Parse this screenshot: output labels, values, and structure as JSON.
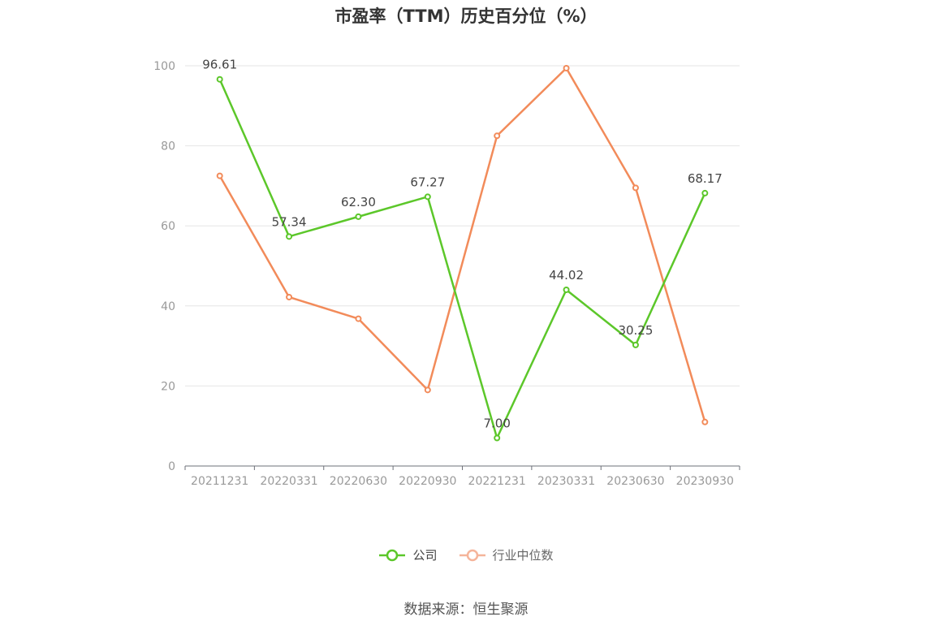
{
  "chart_data": {
    "type": "line",
    "title": "市盈率（TTM）历史百分位（%）",
    "categories": [
      "20211231",
      "20220331",
      "20220630",
      "20220930",
      "20221231",
      "20230331",
      "20230630",
      "20230930"
    ],
    "series": [
      {
        "name": "公司",
        "values": [
          96.61,
          57.34,
          62.3,
          67.27,
          7.0,
          44.02,
          30.25,
          68.17
        ],
        "color": "#5cc72a",
        "show_labels": true
      },
      {
        "name": "行业中位数",
        "values": [
          72.5,
          42.2,
          36.8,
          19.0,
          82.5,
          99.4,
          69.5,
          11.0
        ],
        "color": "#f28b5a",
        "show_labels": false
      }
    ],
    "ylim": [
      0,
      100
    ],
    "yticks": [
      0,
      20,
      40,
      60,
      80,
      100
    ],
    "grid": true,
    "legend_position": "bottom"
  },
  "legend": {
    "items": [
      {
        "label": "公司",
        "color": "#5cc72a",
        "active": true
      },
      {
        "label": "行业中位数",
        "color": "#f5b49a",
        "active": false
      }
    ]
  },
  "footer": {
    "source": "数据来源：恒生聚源"
  }
}
